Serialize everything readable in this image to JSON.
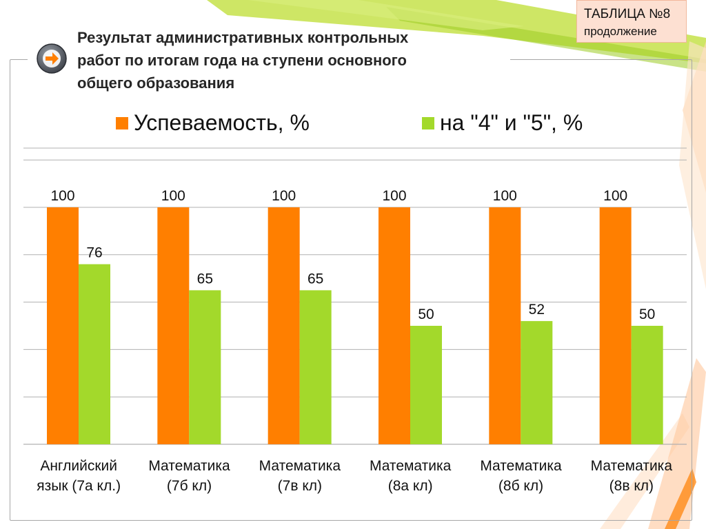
{
  "header": {
    "table_tag": "ТАБЛИЦА №8",
    "table_tag_sub": "продолжение",
    "title": "Результат административных контрольных\nработ по итогам года на ступени основного\nобщего образования"
  },
  "colors": {
    "series1": "#ff7f00",
    "series2": "#a3d92b",
    "grid": "#b0b0b0"
  },
  "chart_data": {
    "type": "bar",
    "categories": [
      "Английский\nязык (7а кл.)",
      "Математика\n(7б кл)",
      "Математика\n(7в кл)",
      "Математика\n(8а кл)",
      "Математика\n(8б кл)",
      "Математика\n(8в кл)"
    ],
    "series": [
      {
        "name": "Успеваемость, %",
        "values": [
          100,
          100,
          100,
          100,
          100,
          100
        ]
      },
      {
        "name": "на \"4\" и \"5\", %",
        "values": [
          76,
          65,
          65,
          50,
          52,
          50
        ]
      }
    ],
    "ylim": [
      0,
      125
    ],
    "grid": true,
    "legend": "top",
    "data_labels": true
  }
}
